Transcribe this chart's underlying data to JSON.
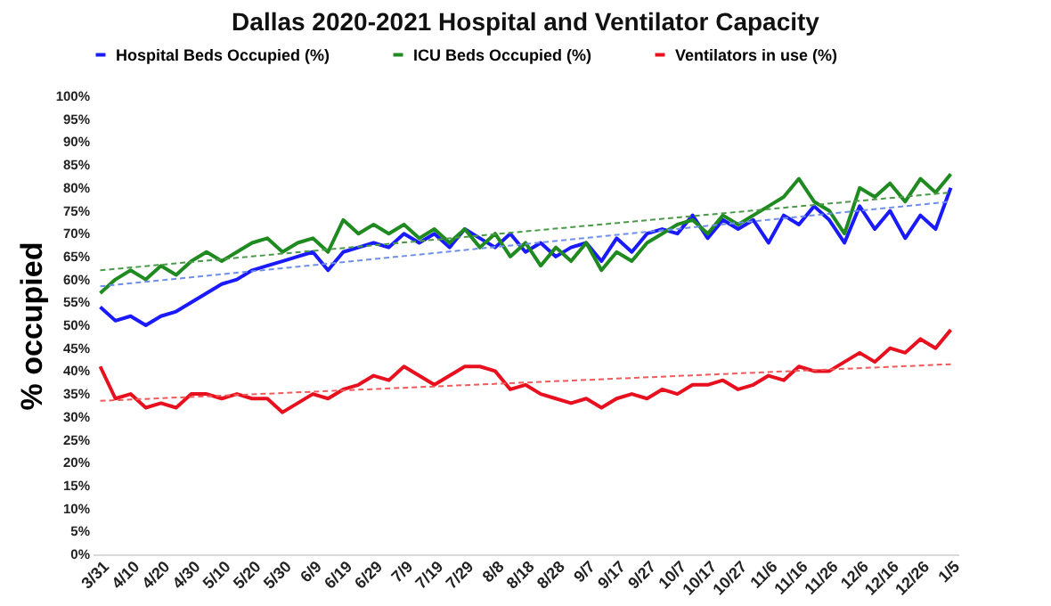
{
  "chart_data": {
    "type": "line",
    "title": "Dallas 2020-2021 Hospital and Ventilator Capacity",
    "ylabel": "% occupied",
    "categories": [
      "3/31",
      null,
      "4/10",
      null,
      "4/20",
      null,
      "4/30",
      null,
      "5/10",
      null,
      "5/20",
      null,
      "5/30",
      null,
      "6/9",
      null,
      "6/19",
      null,
      "6/29",
      null,
      "7/9",
      null,
      "7/19",
      null,
      "7/29",
      null,
      "8/8",
      null,
      "8/18",
      null,
      "8/28",
      null,
      "9/7",
      null,
      "9/17",
      null,
      "9/27",
      null,
      "10/7",
      null,
      "10/17",
      null,
      "10/27",
      null,
      "11/6",
      null,
      "11/16",
      null,
      "11/26",
      null,
      "12/6",
      null,
      "12/16",
      null,
      "12/26",
      null,
      "1/5"
    ],
    "series": [
      {
        "name": "Hospital Beds Occupied (%)",
        "color": "#1a1aff",
        "values": [
          54,
          51,
          52,
          50,
          52,
          53,
          55,
          57,
          59,
          60,
          62,
          63,
          64,
          65,
          66,
          62,
          66,
          67,
          68,
          67,
          70,
          68,
          70,
          67,
          71,
          69,
          67,
          70,
          66,
          68,
          65,
          67,
          68,
          64,
          69,
          66,
          70,
          71,
          70,
          74,
          69,
          73,
          71,
          73,
          68,
          74,
          72,
          76,
          73,
          68,
          76,
          71,
          75,
          69,
          74,
          71,
          80
        ]
      },
      {
        "name": "ICU Beds Occupied (%)",
        "color": "#1f8a1f",
        "values": [
          57,
          60,
          62,
          60,
          63,
          61,
          64,
          66,
          64,
          66,
          68,
          69,
          66,
          68,
          69,
          66,
          73,
          70,
          72,
          70,
          72,
          69,
          71,
          68,
          71,
          67,
          70,
          65,
          68,
          63,
          67,
          64,
          68,
          62,
          66,
          64,
          68,
          70,
          72,
          73,
          70,
          74,
          72,
          74,
          76,
          78,
          82,
          77,
          75,
          70,
          80,
          78,
          81,
          77,
          82,
          79,
          83
        ]
      },
      {
        "name": "Ventilators in use (%)",
        "color": "#e8101e",
        "values": [
          41,
          34,
          35,
          32,
          33,
          32,
          35,
          35,
          34,
          35,
          34,
          34,
          31,
          33,
          35,
          34,
          36,
          37,
          39,
          38,
          41,
          39,
          37,
          39,
          41,
          41,
          40,
          36,
          37,
          35,
          34,
          33,
          34,
          32,
          34,
          35,
          34,
          36,
          35,
          37,
          37,
          38,
          36,
          37,
          39,
          38,
          41,
          40,
          40,
          42,
          44,
          42,
          45,
          44,
          47,
          45,
          49
        ]
      },
      {
        "type": "line",
        "x": [
          "3/31",
          "1/5"
        ],
        "values": [
          58.5,
          77
        ],
        "color": "#6f8fe8",
        "line_style": "dashed"
      },
      {
        "type": "line",
        "x": [
          "3/31",
          "1/5"
        ],
        "values": [
          62,
          79
        ],
        "color": "#4a9a4a",
        "line_style": "dashed"
      },
      {
        "type": "line",
        "x": [
          "3/31",
          "1/5"
        ],
        "values": [
          33.5,
          41.5
        ],
        "color": "#f05a5a",
        "line_style": "dashed"
      }
    ],
    "ylim": [
      0,
      100
    ],
    "yticks": [
      {
        "value": 0,
        "label": "0%"
      },
      {
        "value": 5,
        "label": "5%"
      },
      {
        "value": 10,
        "label": "10%"
      },
      {
        "value": 15,
        "label": "15%"
      },
      {
        "value": 20,
        "label": "20%"
      },
      {
        "value": 25,
        "label": "25%"
      },
      {
        "value": 30,
        "label": "30%"
      },
      {
        "value": 35,
        "label": "35%"
      },
      {
        "value": 40,
        "label": "40%"
      },
      {
        "value": 45,
        "label": "45%"
      },
      {
        "value": 50,
        "label": "50%"
      },
      {
        "value": 55,
        "label": "55%"
      },
      {
        "value": 60,
        "label": "60%"
      },
      {
        "value": 65,
        "label": "65%"
      },
      {
        "value": 70,
        "label": "70%"
      },
      {
        "value": 75,
        "label": "75%"
      },
      {
        "value": 80,
        "label": "80%"
      },
      {
        "value": 85,
        "label": "85%"
      },
      {
        "value": 90,
        "label": "90%"
      },
      {
        "value": 95,
        "label": "95%"
      },
      {
        "value": 100,
        "label": "100%"
      }
    ],
    "legend": "top left",
    "grid": false,
    "marker": "none",
    "line_style": "solid"
  }
}
